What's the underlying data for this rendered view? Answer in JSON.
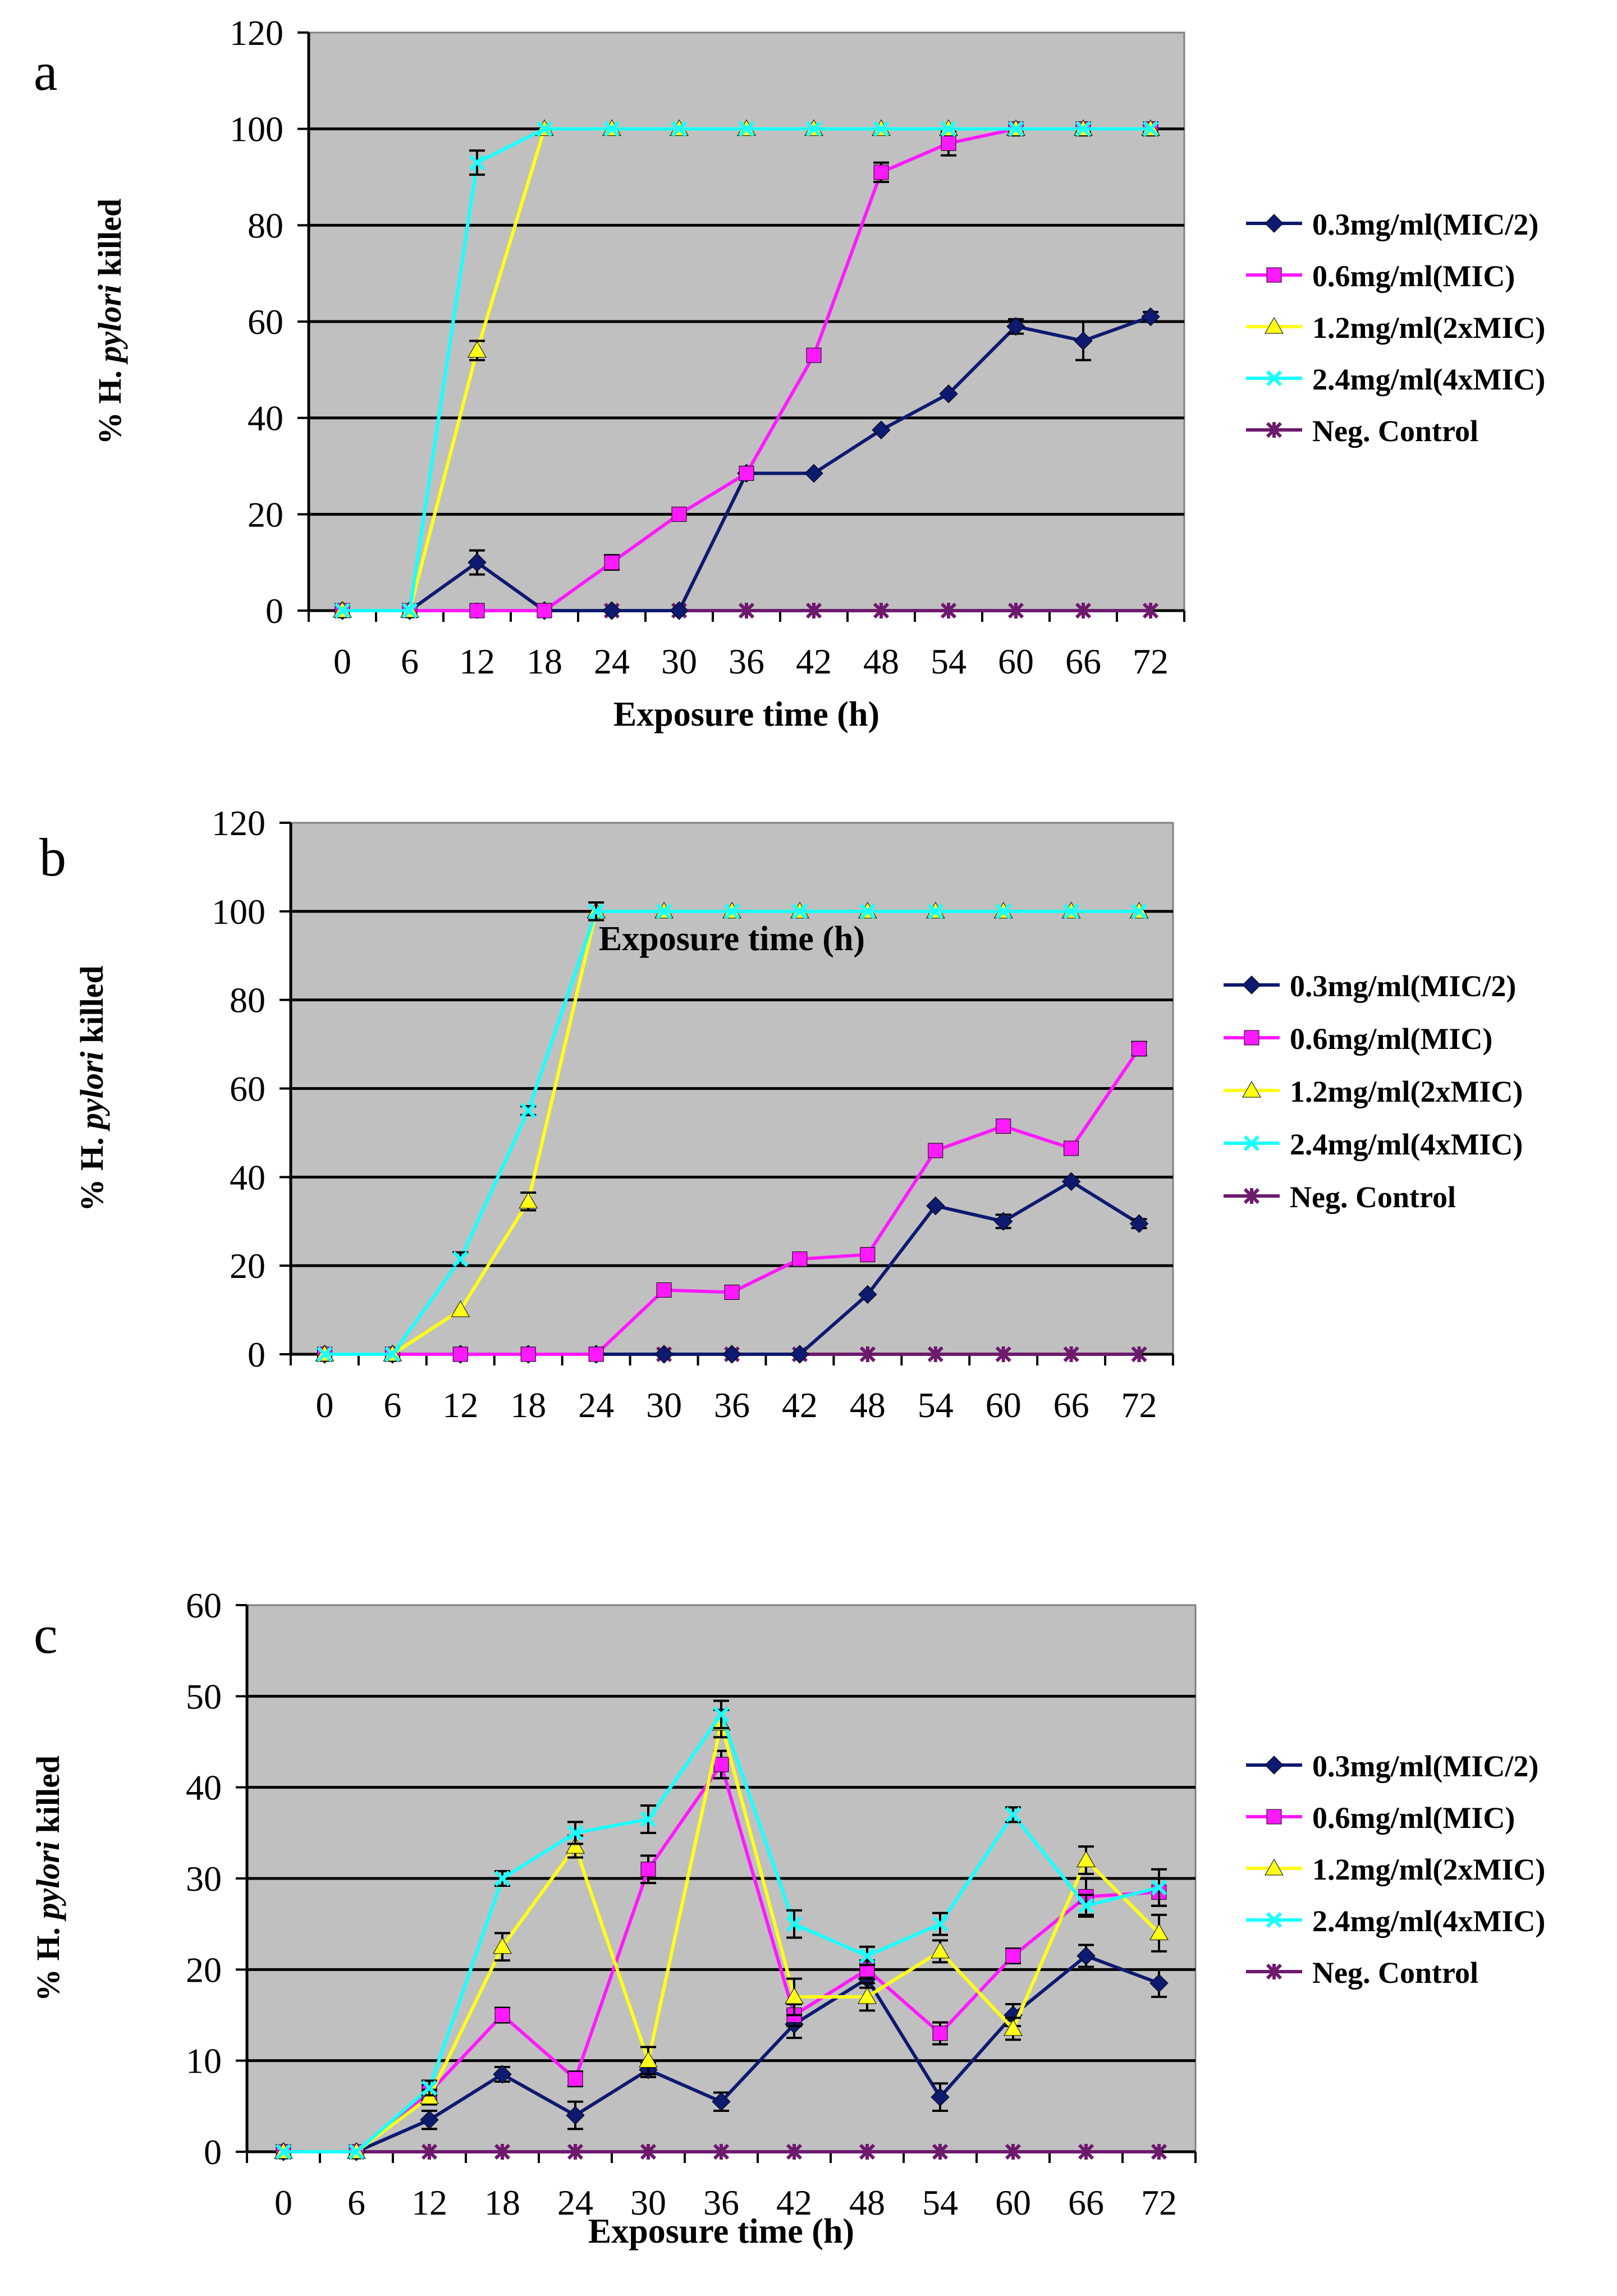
{
  "colors": {
    "plot_bg": "#c0c0c0",
    "grid": "#000000",
    "s0": "#0d1a70",
    "s1": "#ff19ff",
    "s2": "#ffff1a",
    "s3": "#1affff",
    "s4": "#6d1a6d"
  },
  "chart_data": [
    {
      "type": "line",
      "panel_label": "a",
      "xlabel": "Exposure time (h)",
      "ylabel_prefix": "% H. ",
      "ylabel_italic": "pylori",
      "ylabel_suffix": " killed",
      "categories": [
        "0",
        "6",
        "12",
        "18",
        "24",
        "30",
        "36",
        "42",
        "48",
        "54",
        "60",
        "66",
        "72"
      ],
      "ylim": [
        0,
        120
      ],
      "yticks": [
        "0",
        "20",
        "40",
        "60",
        "80",
        "100",
        "120"
      ],
      "legend_position": "right",
      "series": [
        {
          "name": "0.3mg/ml(MIC/2)",
          "marker": "diamond",
          "values": [
            0,
            0,
            10,
            0,
            0,
            0,
            28.5,
            28.5,
            37.5,
            45,
            59,
            56,
            61
          ],
          "errors": [
            0,
            0,
            2.5,
            0,
            0,
            0,
            0,
            0,
            0,
            0,
            1.5,
            4,
            1
          ]
        },
        {
          "name": "0.6mg/ml(MIC)",
          "marker": "square",
          "values": [
            0,
            0,
            0,
            0,
            10,
            20,
            28.5,
            53,
            91,
            97,
            100,
            100,
            100
          ],
          "errors": [
            0,
            0,
            0,
            0,
            1.5,
            0,
            0,
            0,
            2,
            2.5,
            0,
            0,
            0
          ]
        },
        {
          "name": "1.2mg/ml(2xMIC)",
          "marker": "triangle",
          "values": [
            0,
            0,
            54,
            100,
            100,
            100,
            100,
            100,
            100,
            100,
            100,
            100,
            100
          ],
          "errors": [
            0,
            0,
            2,
            0,
            0,
            0,
            0,
            0,
            0,
            0,
            0,
            0,
            0
          ]
        },
        {
          "name": "2.4mg/ml(4xMIC)",
          "marker": "x",
          "values": [
            0,
            0,
            93,
            100,
            100,
            100,
            100,
            100,
            100,
            100,
            100,
            100,
            100
          ],
          "errors": [
            0,
            0,
            2.5,
            0,
            0,
            0,
            0,
            0,
            0,
            0,
            0,
            0,
            0
          ]
        },
        {
          "name": "Neg. Control",
          "marker": "star",
          "values": [
            0,
            0,
            0,
            0,
            0,
            0,
            0,
            0,
            0,
            0,
            0,
            0,
            0
          ],
          "errors": [
            0,
            0,
            0,
            0,
            0,
            0,
            0,
            0,
            0,
            0,
            0,
            0,
            0
          ]
        }
      ]
    },
    {
      "type": "line",
      "panel_label": "b",
      "xlabel": "Exposure time (h)",
      "ylabel_prefix": "% H. ",
      "ylabel_italic": "pylori",
      "ylabel_suffix": " killed",
      "categories": [
        "0",
        "6",
        "12",
        "18",
        "24",
        "30",
        "36",
        "42",
        "48",
        "54",
        "60",
        "66",
        "72"
      ],
      "ylim": [
        0,
        120
      ],
      "yticks": [
        "0",
        "20",
        "40",
        "60",
        "80",
        "100",
        "120"
      ],
      "legend_position": "right",
      "series": [
        {
          "name": "0.3mg/ml(MIC/2)",
          "marker": "diamond",
          "values": [
            0,
            0,
            0,
            0,
            0,
            0,
            0,
            0,
            13.5,
            33.5,
            30,
            39,
            29.5
          ],
          "errors": [
            0,
            0,
            0,
            0,
            0,
            0,
            0,
            0,
            0,
            0,
            1.5,
            0,
            1
          ]
        },
        {
          "name": "0.6mg/ml(MIC)",
          "marker": "square",
          "values": [
            0,
            0,
            0,
            0,
            0,
            14.5,
            14,
            21.5,
            22.5,
            46,
            51.5,
            46.5,
            69
          ],
          "errors": [
            0,
            0,
            0,
            0,
            0,
            0,
            0,
            0,
            0,
            0,
            0,
            0,
            1.5
          ]
        },
        {
          "name": "1.2mg/ml(2xMIC)",
          "marker": "triangle",
          "values": [
            0,
            0,
            10,
            34.5,
            100,
            100,
            100,
            100,
            100,
            100,
            100,
            100,
            100
          ],
          "errors": [
            0,
            0,
            0,
            2,
            0,
            0,
            0,
            0,
            0,
            0,
            0,
            0,
            0
          ]
        },
        {
          "name": "2.4mg/ml(4xMIC)",
          "marker": "x",
          "values": [
            0,
            0,
            21.5,
            55,
            100,
            100,
            100,
            100,
            100,
            100,
            100,
            100,
            100
          ],
          "errors": [
            0,
            0,
            1.5,
            1,
            2,
            0,
            0,
            0,
            0,
            0,
            0,
            0,
            0
          ]
        },
        {
          "name": "Neg. Control",
          "marker": "star",
          "values": [
            0,
            0,
            0,
            0,
            0,
            0,
            0,
            0,
            0,
            0,
            0,
            0,
            0
          ],
          "errors": [
            0,
            0,
            0,
            0,
            0,
            0,
            0,
            0,
            0,
            0,
            0,
            0,
            0
          ]
        }
      ]
    },
    {
      "type": "line",
      "panel_label": "c",
      "xlabel": "Exposure time (h)",
      "ylabel_prefix": "% H. ",
      "ylabel_italic": "pylori",
      "ylabel_suffix": " killed",
      "categories": [
        "0",
        "6",
        "12",
        "18",
        "24",
        "30",
        "36",
        "42",
        "48",
        "54",
        "60",
        "66",
        "72"
      ],
      "ylim": [
        0,
        60
      ],
      "yticks": [
        "0",
        "10",
        "20",
        "30",
        "40",
        "50",
        "60"
      ],
      "legend_position": "right",
      "series": [
        {
          "name": "0.3mg/ml(MIC/2)",
          "marker": "diamond",
          "values": [
            0,
            0,
            3.5,
            8.5,
            4,
            9,
            5.5,
            14,
            19,
            6,
            15,
            21.5,
            18.5
          ],
          "errors": [
            0,
            0,
            1,
            0.8,
            1.5,
            0.8,
            1,
            1.5,
            1,
            1.5,
            1.2,
            1.2,
            1.5
          ]
        },
        {
          "name": "0.6mg/ml(MIC)",
          "marker": "square",
          "values": [
            0,
            0,
            6.5,
            15,
            8,
            31,
            42.5,
            15,
            20,
            13,
            21.5,
            28,
            28.5
          ],
          "errors": [
            0,
            0,
            0.8,
            0.8,
            0.8,
            1.5,
            1.5,
            1.2,
            1,
            1.2,
            0.8,
            2,
            1.5
          ]
        },
        {
          "name": "1.2mg/ml(2xMIC)",
          "marker": "triangle",
          "values": [
            0,
            0,
            6,
            22.5,
            33.5,
            10,
            47,
            17,
            17,
            22,
            13.5,
            32,
            24
          ],
          "errors": [
            0,
            0,
            0.8,
            1.5,
            1.2,
            1.5,
            1.5,
            2,
            1.5,
            1.2,
            1.2,
            1.5,
            2
          ]
        },
        {
          "name": "2.4mg/ml(4xMIC)",
          "marker": "x",
          "values": [
            0,
            0,
            7,
            30,
            35,
            36.5,
            48,
            25,
            21.5,
            25,
            37,
            27,
            29
          ],
          "errors": [
            0,
            0,
            0.8,
            0.8,
            1.2,
            1.5,
            1.5,
            1.5,
            1,
            1.2,
            0.8,
            1.2,
            2
          ]
        },
        {
          "name": "Neg. Control",
          "marker": "star",
          "values": [
            0,
            0,
            0,
            0,
            0,
            0,
            0,
            0,
            0,
            0,
            0,
            0,
            0
          ],
          "errors": [
            0,
            0,
            0,
            0,
            0,
            0,
            0,
            0,
            0,
            0,
            0,
            0,
            0
          ]
        }
      ]
    }
  ]
}
